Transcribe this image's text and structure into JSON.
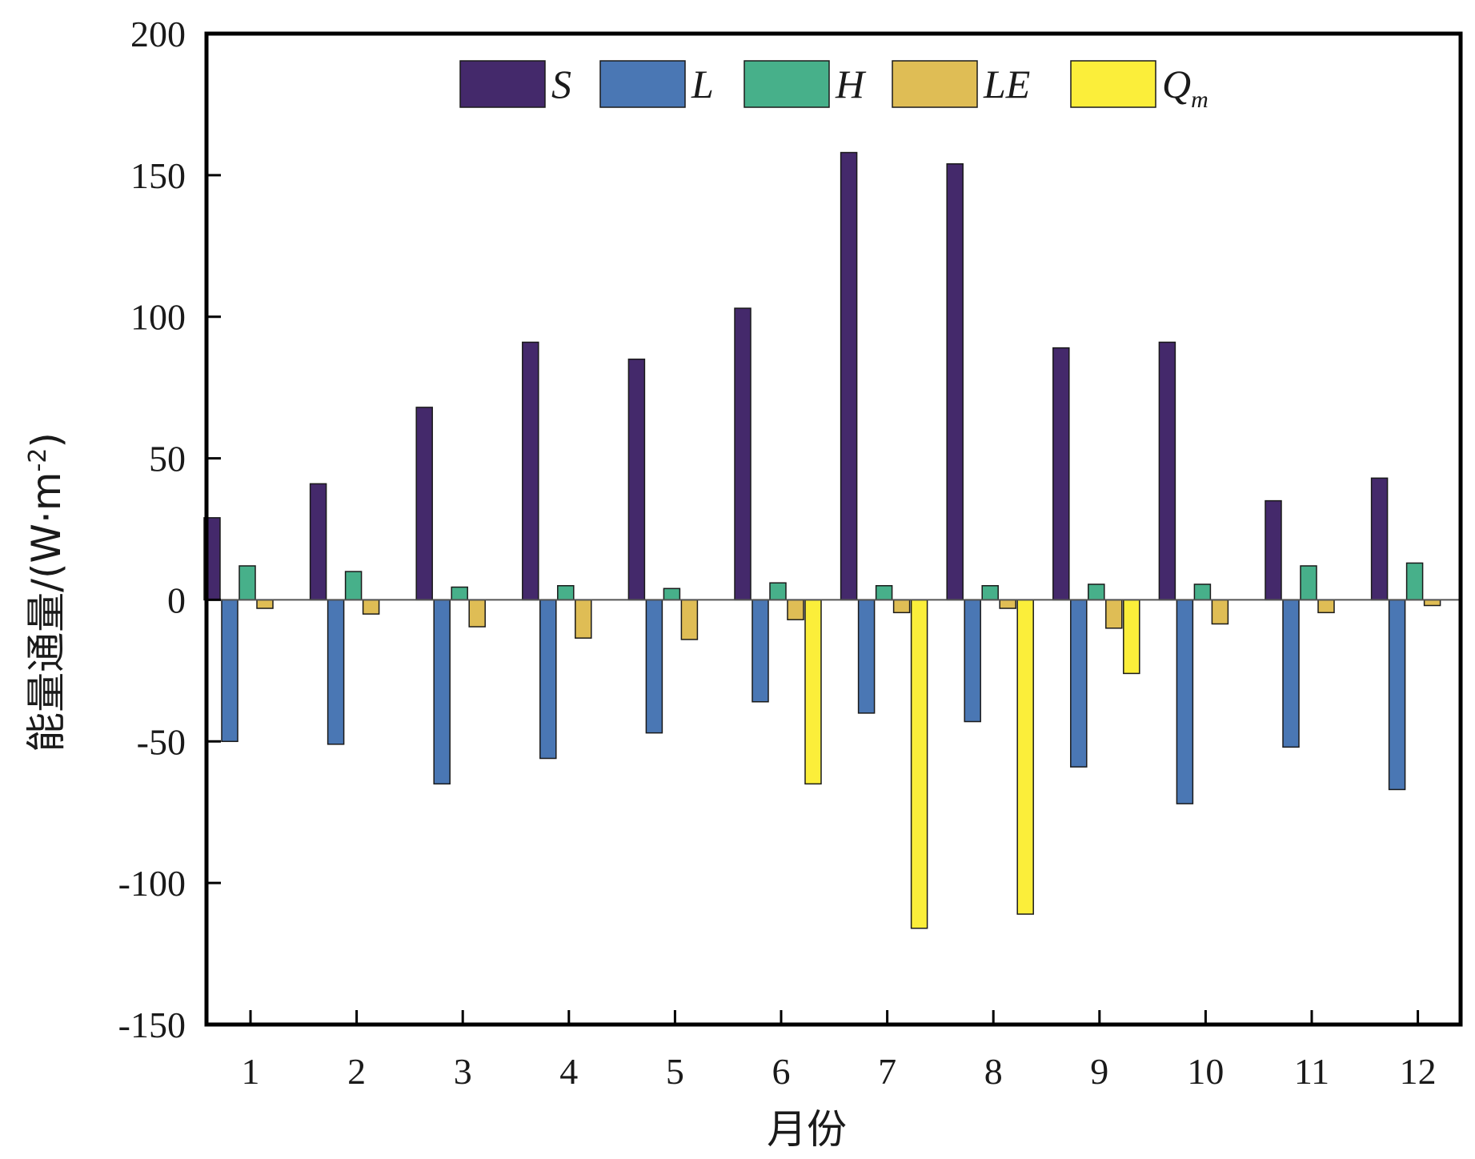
{
  "chart_data": {
    "type": "bar",
    "categories": [
      "1",
      "2",
      "3",
      "4",
      "5",
      "6",
      "7",
      "8",
      "9",
      "10",
      "11",
      "12"
    ],
    "series": [
      {
        "name": "S",
        "color": "#44296b",
        "values": [
          29,
          41,
          68,
          91,
          85,
          103,
          158,
          154,
          89,
          91,
          35,
          43
        ]
      },
      {
        "name": "L",
        "color": "#4a77b4",
        "values": [
          -50,
          -51,
          -65,
          -56,
          -47,
          -36,
          -40,
          -43,
          -59,
          -72,
          -52,
          -67
        ]
      },
      {
        "name": "H",
        "color": "#47b08a",
        "values": [
          12,
          10,
          4.5,
          5,
          4,
          6,
          5,
          5,
          5.5,
          5.5,
          12,
          13
        ]
      },
      {
        "name": "LE",
        "color": "#dfbd55",
        "values": [
          -3,
          -5,
          -9.5,
          -13.5,
          -14,
          -7,
          -4.5,
          -3,
          -10,
          -8.5,
          -4.5,
          -2
        ]
      },
      {
        "name": "Q",
        "subscript": "m",
        "color": "#fbee3a",
        "values": [
          0,
          0,
          0,
          0,
          0,
          -65,
          -116,
          -111,
          -26,
          0,
          0,
          0
        ]
      }
    ],
    "xlabel": "月份",
    "ylabel": "能量通量/(W·m",
    "ylabel_sup": "-2",
    "ylabel_end": ")",
    "ylim": [
      -150,
      200
    ],
    "yticks": [
      200,
      150,
      100,
      50,
      0,
      -50,
      -100,
      -150
    ],
    "ytick_labels": [
      "200",
      "150",
      "100",
      "50",
      "0",
      "-50",
      "-100",
      "-150"
    ],
    "grid": false,
    "legend_position": "top-center"
  }
}
